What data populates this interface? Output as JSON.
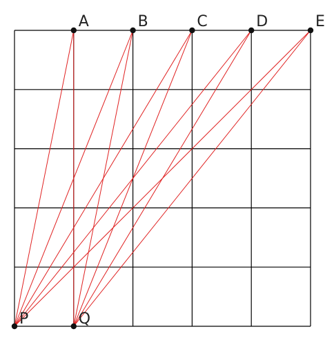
{
  "diagram": {
    "grid": {
      "columns": 5,
      "rows": 5,
      "line_color": "#000000"
    },
    "segment_color": "#e02020",
    "point_color": "#111111",
    "points": [
      {
        "id": "A",
        "label": "A",
        "col": 1,
        "row": 0
      },
      {
        "id": "B",
        "label": "B",
        "col": 2,
        "row": 0
      },
      {
        "id": "C",
        "label": "C",
        "col": 3,
        "row": 0
      },
      {
        "id": "D",
        "label": "D",
        "col": 4,
        "row": 0
      },
      {
        "id": "E",
        "label": "E",
        "col": 5,
        "row": 0
      },
      {
        "id": "P",
        "label": "P",
        "col": 0,
        "row": 5
      },
      {
        "id": "Q",
        "label": "Q",
        "col": 1,
        "row": 5
      }
    ],
    "segments": [
      [
        "P",
        "A"
      ],
      [
        "P",
        "B"
      ],
      [
        "P",
        "C"
      ],
      [
        "P",
        "D"
      ],
      [
        "P",
        "E"
      ],
      [
        "Q",
        "A"
      ],
      [
        "Q",
        "B"
      ],
      [
        "Q",
        "C"
      ],
      [
        "Q",
        "D"
      ],
      [
        "Q",
        "E"
      ]
    ]
  }
}
